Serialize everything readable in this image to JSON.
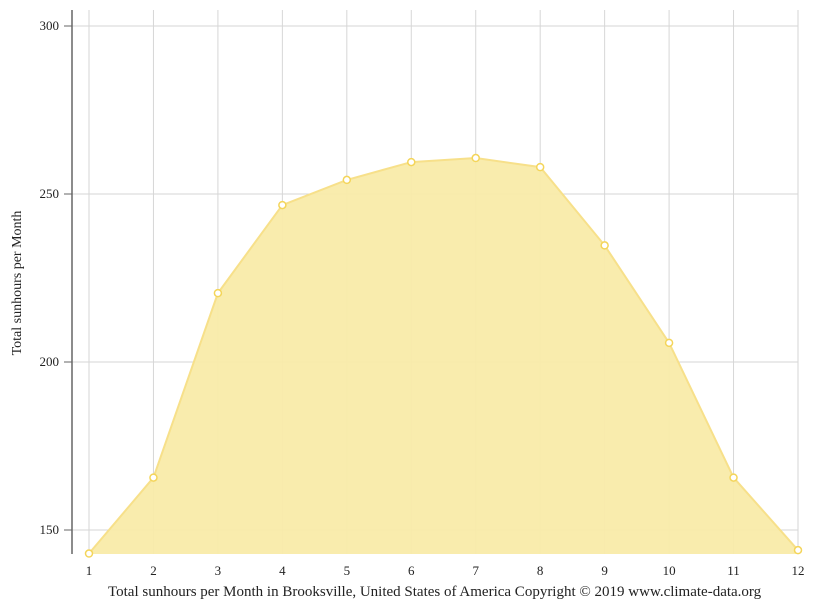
{
  "chart_data": {
    "type": "area",
    "title": "",
    "xlabel": "Total sunhours per Month in Brooksville, United States of America Copyright © 2019 www.climate-data.org",
    "ylabel": "Total sunhours per Month",
    "categories": [
      "1",
      "2",
      "3",
      "4",
      "5",
      "6",
      "7",
      "8",
      "9",
      "10",
      "11",
      "12"
    ],
    "series": [
      {
        "name": "Sunhours",
        "values": [
          143,
          165.6,
          220.5,
          246.7,
          254.2,
          259.5,
          260.7,
          258.0,
          234.7,
          205.7,
          165.6,
          144.0
        ]
      }
    ],
    "yticks": [
      150,
      200,
      250,
      300
    ],
    "ylim": [
      142.9,
      304
    ],
    "grid": true,
    "legend": "none",
    "colors": {
      "fill": "#f9eba9",
      "line": "#f7e08a",
      "point_stroke": "#f4d55a",
      "grid": "#d6d6d6",
      "axis": "#666666"
    }
  }
}
